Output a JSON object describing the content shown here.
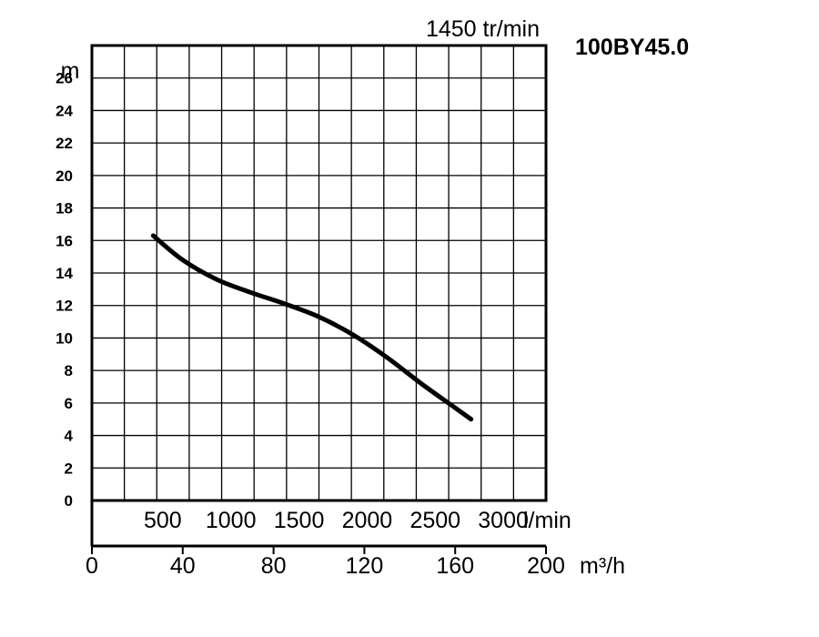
{
  "chart_data": {
    "type": "line",
    "speed_label": "1450 tr/min",
    "model": "100BY45.0",
    "ylabel": "m",
    "ylim": [
      0,
      28
    ],
    "yticks": [
      0,
      2,
      4,
      6,
      8,
      10,
      12,
      14,
      16,
      18,
      20,
      22,
      24,
      26
    ],
    "xlabel": "m³/h",
    "xlim": [
      0,
      200
    ],
    "xticks": [
      0,
      40,
      80,
      120,
      160,
      200
    ],
    "x2label": "l/min",
    "x2ticks": [
      500,
      1000,
      1500,
      2000,
      2500,
      3000
    ],
    "grid": true,
    "series": [
      {
        "x": [
          27,
          40,
          55,
          70,
          85,
          100,
          115,
          130,
          145,
          160,
          167
        ],
        "y": [
          16.3,
          14.8,
          13.6,
          12.8,
          12.1,
          11.3,
          10.2,
          8.8,
          7.2,
          5.7,
          5.0
        ],
        "color": "#000000"
      }
    ]
  }
}
